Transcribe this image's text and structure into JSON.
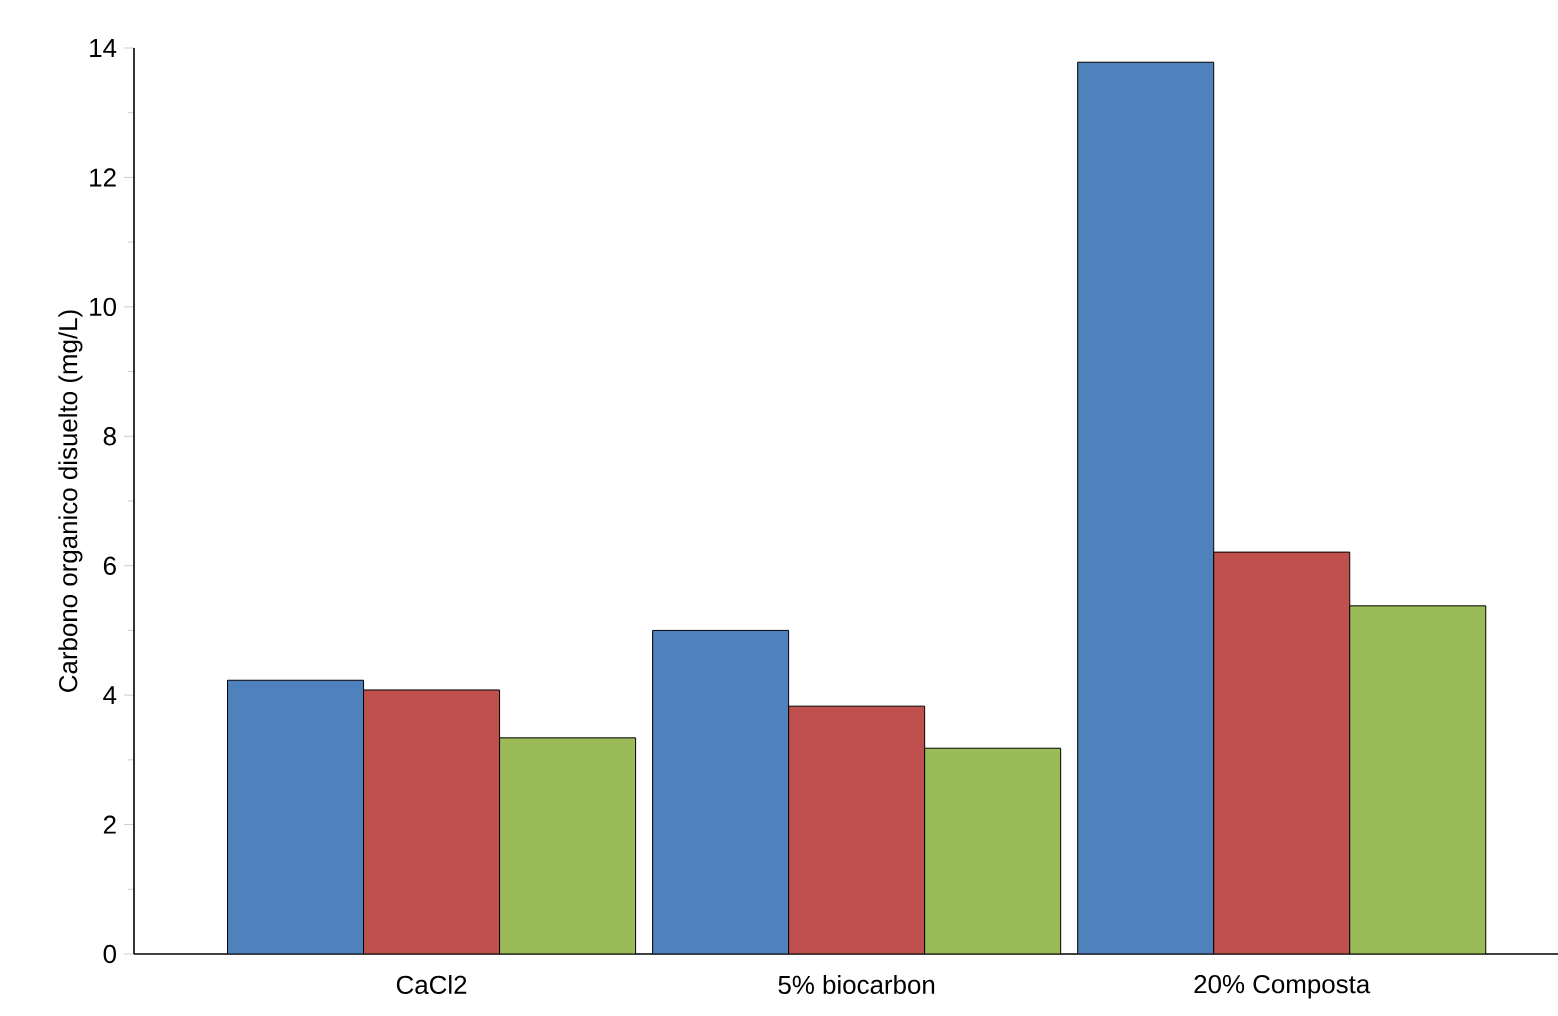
{
  "chart_data": {
    "type": "bar",
    "ylabel": "Carbono organico  disuelto (mg/L)",
    "categories": [
      "CaCl2",
      "5% biocarbon",
      "20% Composta"
    ],
    "series": [
      {
        "color": "#4f81bd",
        "values": [
          4.23,
          5.0,
          13.78
        ]
      },
      {
        "color": "#c0504d",
        "values": [
          4.08,
          3.83,
          6.21
        ]
      },
      {
        "color": "#9bbb59",
        "values": [
          3.34,
          3.18,
          5.38
        ]
      }
    ],
    "ylim": [
      0,
      14
    ],
    "yticks": [
      0,
      2,
      4,
      6,
      8,
      10,
      12,
      14
    ]
  }
}
